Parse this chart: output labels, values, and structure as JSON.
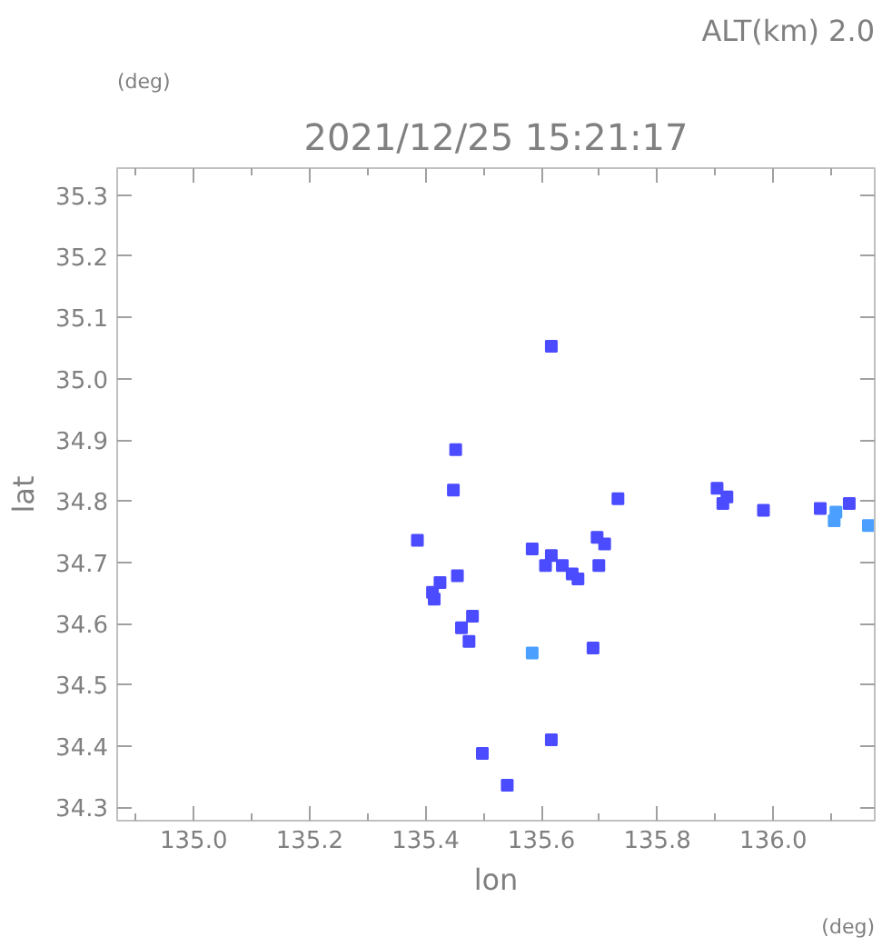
{
  "chart_data": {
    "type": "scatter",
    "title": "2021/12/25 15:21:17",
    "subtitle": "ALT(km) 2.0",
    "xlabel": "lon",
    "ylabel": "lat",
    "annotations": [
      "(deg)",
      "(deg)"
    ],
    "xlim": [
      134.868,
      136.175
    ],
    "ylim": [
      34.278,
      35.344
    ],
    "xticks": [
      {
        "value": 135,
        "label": "135.0"
      },
      135.2,
      135.4,
      135.6,
      135.8,
      {
        "value": 136,
        "label": "136.0"
      }
    ],
    "yticks": [
      34.3,
      34.4,
      34.5,
      34.6,
      34.7,
      34.8,
      34.9,
      {
        "value": 35,
        "label": "35.0"
      },
      35.1,
      35.2,
      35.3
    ],
    "grid": false,
    "marker": "square",
    "series": [
      {
        "color": "#4b4bff",
        "x": [
          135.617,
          135.452,
          135.448,
          135.732,
          135.386,
          135.696,
          135.709,
          135.584,
          135.617,
          135.699,
          135.607,
          135.653,
          135.636,
          135.663,
          135.455,
          135.425,
          135.412,
          135.415,
          135.481,
          135.462,
          135.475,
          135.689,
          135.498,
          135.617,
          135.541,
          135.903,
          135.92,
          135.913,
          135.983,
          136.131,
          136.081
        ],
        "values": [
          35.053,
          34.884,
          34.818,
          34.804,
          34.736,
          34.741,
          34.73,
          34.722,
          34.711,
          34.695,
          34.695,
          34.681,
          34.695,
          34.673,
          34.678,
          34.667,
          34.651,
          34.64,
          34.612,
          34.593,
          34.571,
          34.56,
          34.388,
          34.41,
          34.336,
          34.821,
          34.807,
          34.796,
          34.785,
          34.796,
          34.788
        ]
      },
      {
        "color": "#4ba0ff",
        "x": [
          135.584,
          136.108,
          136.105,
          136.164
        ],
        "values": [
          34.552,
          34.782,
          34.768,
          34.76
        ]
      }
    ]
  }
}
